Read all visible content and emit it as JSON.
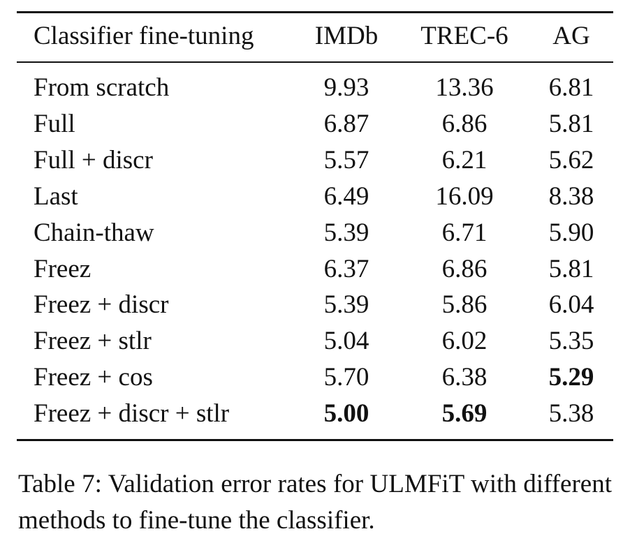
{
  "table": {
    "headers": [
      "Classifier fine-tuning",
      "IMDb",
      "TREC-6",
      "AG"
    ],
    "rows": [
      {
        "label": "From scratch",
        "values": [
          "9.93",
          "13.36",
          "6.81"
        ],
        "bold": [
          false,
          false,
          false
        ]
      },
      {
        "label": "Full",
        "values": [
          "6.87",
          "6.86",
          "5.81"
        ],
        "bold": [
          false,
          false,
          false
        ]
      },
      {
        "label": "Full + discr",
        "values": [
          "5.57",
          "6.21",
          "5.62"
        ],
        "bold": [
          false,
          false,
          false
        ]
      },
      {
        "label": "Last",
        "values": [
          "6.49",
          "16.09",
          "8.38"
        ],
        "bold": [
          false,
          false,
          false
        ]
      },
      {
        "label": "Chain-thaw",
        "values": [
          "5.39",
          "6.71",
          "5.90"
        ],
        "bold": [
          false,
          false,
          false
        ]
      },
      {
        "label": "Freez",
        "values": [
          "6.37",
          "6.86",
          "5.81"
        ],
        "bold": [
          false,
          false,
          false
        ]
      },
      {
        "label": "Freez + discr",
        "values": [
          "5.39",
          "5.86",
          "6.04"
        ],
        "bold": [
          false,
          false,
          false
        ]
      },
      {
        "label": "Freez + stlr",
        "values": [
          "5.04",
          "6.02",
          "5.35"
        ],
        "bold": [
          false,
          false,
          false
        ]
      },
      {
        "label": "Freez + cos",
        "values": [
          "5.70",
          "6.38",
          "5.29"
        ],
        "bold": [
          false,
          false,
          true
        ]
      },
      {
        "label": "Freez + discr + stlr",
        "values": [
          "5.00",
          "5.69",
          "5.38"
        ],
        "bold": [
          true,
          true,
          false
        ]
      }
    ]
  },
  "caption": "Table 7: Validation error rates for ULMFiT with different methods to fine-tune the classifier."
}
